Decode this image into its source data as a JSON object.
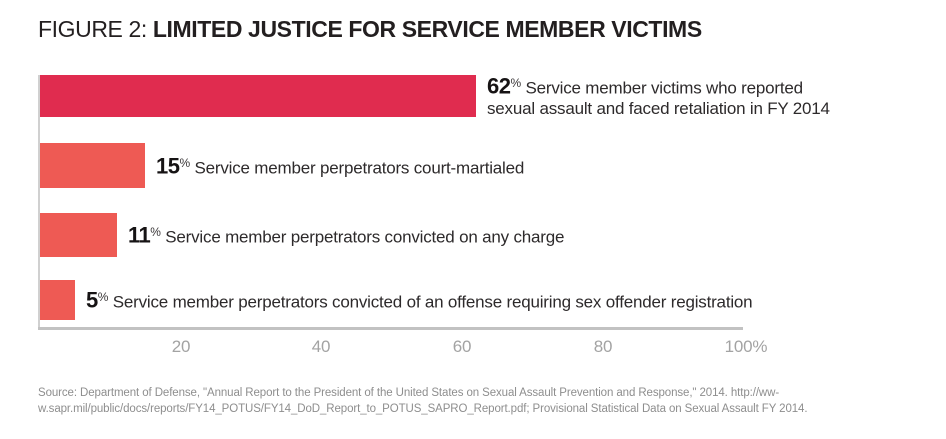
{
  "title": {
    "prefix": "FIGURE 2:",
    "main": "LIMITED JUSTICE FOR SERVICE MEMBER VICTIMS"
  },
  "chart_data": {
    "type": "bar",
    "orientation": "horizontal",
    "title": "FIGURE 2: LIMITED JUSTICE FOR SERVICE MEMBER VICTIMS",
    "xlabel": "",
    "ylabel": "",
    "xlim": [
      0,
      100
    ],
    "x_ticks": [
      20,
      40,
      60,
      80,
      100
    ],
    "x_tick_labels": [
      "20",
      "40",
      "60",
      "80",
      "100%"
    ],
    "grid": false,
    "legend": "none",
    "categories": [
      "Service member victims who reported sexual assault and faced retaliation in FY 2014",
      "Service member perpetrators court-martialed",
      "Service member perpetrators convicted on any charge",
      "Service member perpetrators convicted of an offense requiring sex offender registration"
    ],
    "values": [
      62,
      15,
      11,
      5
    ],
    "bars": [
      {
        "value": 62,
        "pct": "62",
        "pct_sign": "%",
        "line1": "Service member victims who reported",
        "line2": "sexual assault and faced retaliation in FY 2014",
        "color": "#e02c4f"
      },
      {
        "value": 15,
        "pct": "15",
        "pct_sign": "%",
        "line1": "Service member perpetrators court-martialed",
        "color": "#ee5a54"
      },
      {
        "value": 11,
        "pct": "11",
        "pct_sign": "%",
        "line1": "Service member perpetrators convicted on any charge",
        "color": "#ee5a54"
      },
      {
        "value": 5,
        "pct": "5",
        "pct_sign": "%",
        "line1": "Service member perpetrators convicted of an offense requiring sex offender registration",
        "color": "#ee5a54"
      }
    ]
  },
  "source": {
    "line1": "Source: Department of Defense, \"Annual Report to the President of the United States on Sexual Assault Prevention and Response,\" 2014. http://ww-",
    "line2": "w.sapr.mil/public/docs/reports/FY14_POTUS/FY14_DoD_Report_to_POTUS_SAPRO_Report.pdf; Provisional Statistical Data on Sexual Assault FY 2014."
  },
  "colors": {
    "bar_primary": "#e02c4f",
    "bar_secondary": "#ee5a54",
    "axis_line": "#c2c2c2",
    "tick_text": "#a3a3a3",
    "title_text": "#231f20",
    "label_text": "#2d2a2b",
    "source_text": "#8e8e8e"
  }
}
